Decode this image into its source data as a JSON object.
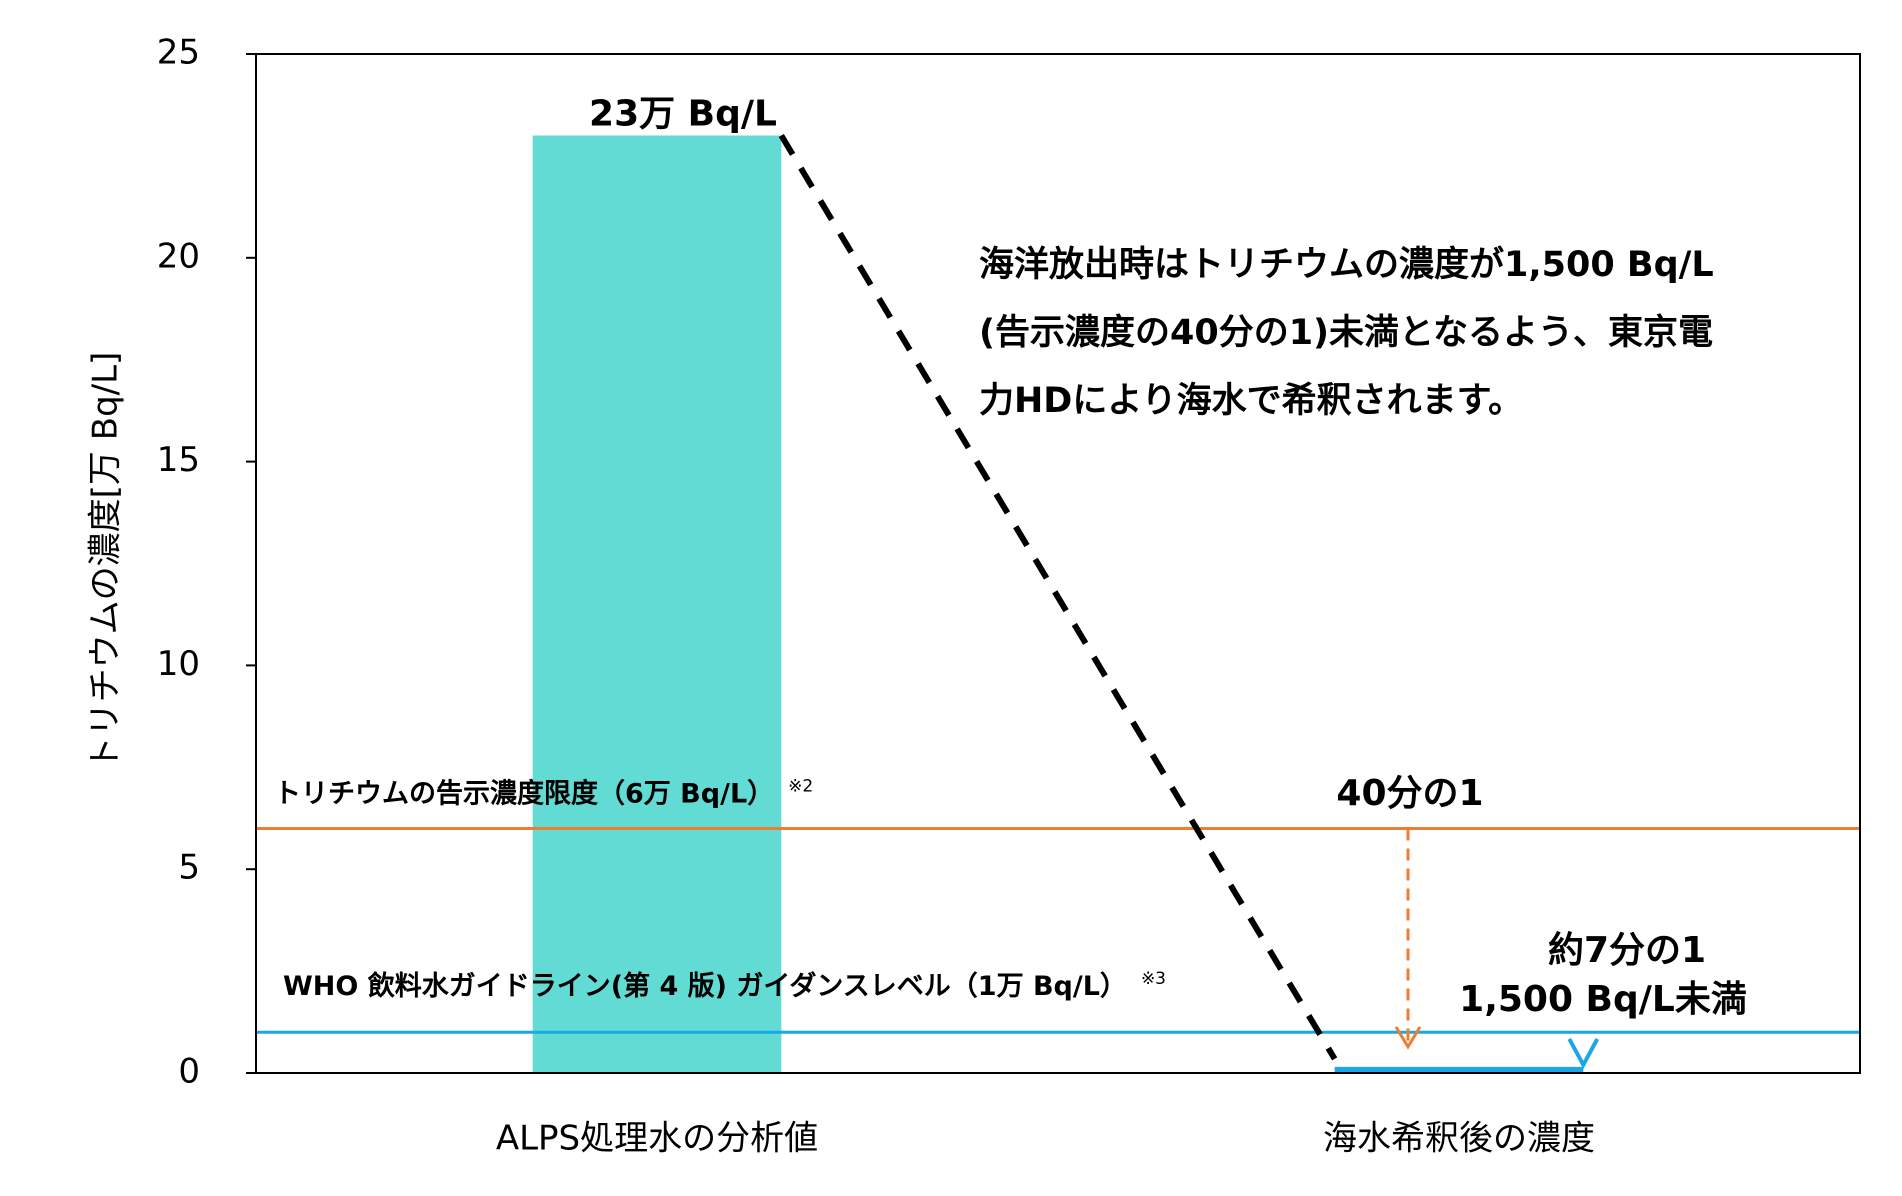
{
  "chart_data": {
    "type": "bar",
    "y_label": "トリチウムの濃度[万 Bq/L]",
    "categories": [
      "ALPS処理水の分析値",
      "海水希釈後の濃度"
    ],
    "values": [
      23,
      0.15
    ],
    "value_labels": [
      "23万 Bq/L",
      "1,500 Bq/L未満"
    ],
    "colors": [
      "#62dbd5",
      "#1aa7e8"
    ],
    "ylim": [
      0,
      25
    ],
    "yticks": [
      0,
      5,
      10,
      15,
      20,
      25
    ],
    "reference_lines": [
      {
        "value": 6,
        "label": "トリチウムの告示濃度限度（6万 Bq/L）",
        "note": "※2",
        "color": "#ed7d31"
      },
      {
        "value": 1,
        "label": "WHO 飲料水ガイドライン(第 4 版) ガイダンスレベル（1万 Bq/L）",
        "note": "※3",
        "color": "#1aa7e8"
      }
    ],
    "annotation_lines": [
      "海洋放出時はトリチウムの濃度が1,500 Bq/L",
      "(告示濃度の40分の1)未満となるよう、東京電",
      "力HDにより海水で希釈されます。"
    ],
    "ratio_labels": [
      "40分の1",
      "約7分の1"
    ]
  }
}
